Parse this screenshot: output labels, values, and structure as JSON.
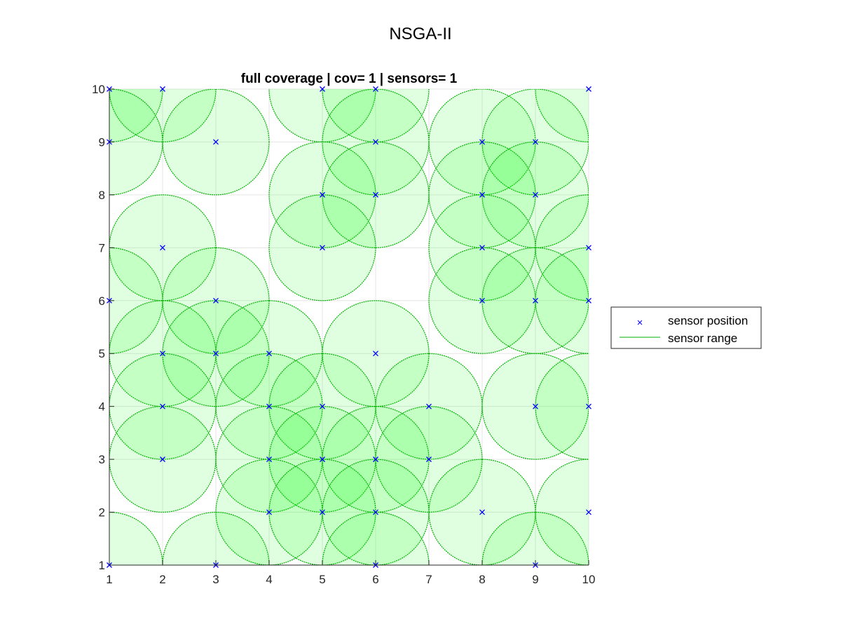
{
  "figure": {
    "title": "NSGA-II"
  },
  "chart_data": {
    "type": "scatter",
    "title": "full coverage | cov= 1 | sensors= 1",
    "xlabel": "",
    "ylabel": "",
    "xlim": [
      1,
      10
    ],
    "ylim": [
      1,
      10
    ],
    "xticks": [
      "1",
      "2",
      "3",
      "4",
      "5",
      "6",
      "7",
      "8",
      "9",
      "10"
    ],
    "yticks": [
      "1",
      "2",
      "3",
      "4",
      "5",
      "6",
      "7",
      "8",
      "9",
      "10"
    ],
    "grid": true,
    "legend_position": "outside-right",
    "sensor_range": 1,
    "colors": {
      "marker": "#0000ff",
      "range_line": "#00b000",
      "range_fill": "#00ff00",
      "grid": "#e6e6e6",
      "axis": "#262626"
    },
    "series": [
      {
        "name": "sensor position",
        "points": [
          [
            1,
            10
          ],
          [
            2,
            10
          ],
          [
            5,
            10
          ],
          [
            6,
            10
          ],
          [
            10,
            10
          ],
          [
            1,
            9
          ],
          [
            3,
            9
          ],
          [
            6,
            9
          ],
          [
            8,
            9
          ],
          [
            9,
            9
          ],
          [
            5,
            8
          ],
          [
            6,
            8
          ],
          [
            8,
            8
          ],
          [
            9,
            8
          ],
          [
            2,
            7
          ],
          [
            5,
            7
          ],
          [
            8,
            7
          ],
          [
            10,
            7
          ],
          [
            1,
            6
          ],
          [
            3,
            6
          ],
          [
            8,
            6
          ],
          [
            9,
            6
          ],
          [
            10,
            6
          ],
          [
            2,
            5
          ],
          [
            3,
            5
          ],
          [
            4,
            5
          ],
          [
            6,
            5
          ],
          [
            2,
            4
          ],
          [
            4,
            4
          ],
          [
            5,
            4
          ],
          [
            7,
            4
          ],
          [
            9,
            4
          ],
          [
            10,
            4
          ],
          [
            2,
            3
          ],
          [
            4,
            3
          ],
          [
            5,
            3
          ],
          [
            6,
            3
          ],
          [
            7,
            3
          ],
          [
            4,
            2
          ],
          [
            5,
            2
          ],
          [
            6,
            2
          ],
          [
            8,
            2
          ],
          [
            10,
            2
          ],
          [
            1,
            1
          ],
          [
            3,
            1
          ],
          [
            6,
            1
          ],
          [
            9,
            1
          ]
        ]
      },
      {
        "name": "sensor range"
      }
    ]
  }
}
